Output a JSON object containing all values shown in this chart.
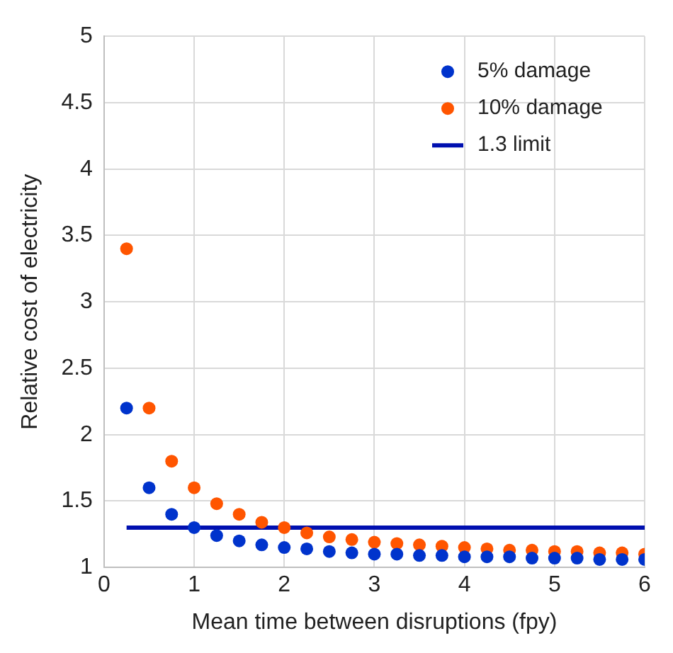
{
  "chart_data": {
    "type": "scatter",
    "xlabel": "Mean time between disruptions (fpy)",
    "ylabel": "Relative cost of electricity",
    "x": [
      0.25,
      0.5,
      0.75,
      1,
      1.25,
      1.5,
      1.75,
      2,
      2.25,
      2.5,
      2.75,
      3,
      3.25,
      3.5,
      3.75,
      4,
      4.25,
      4.5,
      4.75,
      5,
      5.25,
      5.5,
      5.75,
      6
    ],
    "series": [
      {
        "name": "5% damage",
        "color": "#0033cc",
        "values": [
          2.2,
          1.6,
          1.4,
          1.3,
          1.24,
          1.2,
          1.17,
          1.15,
          1.14,
          1.12,
          1.11,
          1.1,
          1.1,
          1.09,
          1.09,
          1.08,
          1.08,
          1.08,
          1.07,
          1.07,
          1.07,
          1.06,
          1.06,
          1.06
        ]
      },
      {
        "name": "10% damage",
        "color": "#ff5500",
        "values": [
          3.4,
          2.2,
          1.8,
          1.6,
          1.48,
          1.4,
          1.34,
          1.3,
          1.26,
          1.23,
          1.21,
          1.19,
          1.18,
          1.17,
          1.16,
          1.15,
          1.14,
          1.13,
          1.13,
          1.12,
          1.12,
          1.11,
          1.11,
          1.1
        ]
      },
      {
        "name": "1.3 limit",
        "type": "line",
        "color": "#0010b0",
        "x": [
          0.25,
          6
        ],
        "values": [
          1.3,
          1.3
        ],
        "marker": "none",
        "line_style": "solid"
      }
    ],
    "xlim": [
      0,
      6
    ],
    "xticks": [
      0,
      1,
      2,
      3,
      4,
      5,
      6
    ],
    "ylim": [
      1,
      5
    ],
    "yticks": [
      1,
      1.5,
      2,
      2.5,
      3,
      3.5,
      4,
      4.5,
      5
    ],
    "grid": true,
    "legend": "top right",
    "marker": "circle"
  }
}
